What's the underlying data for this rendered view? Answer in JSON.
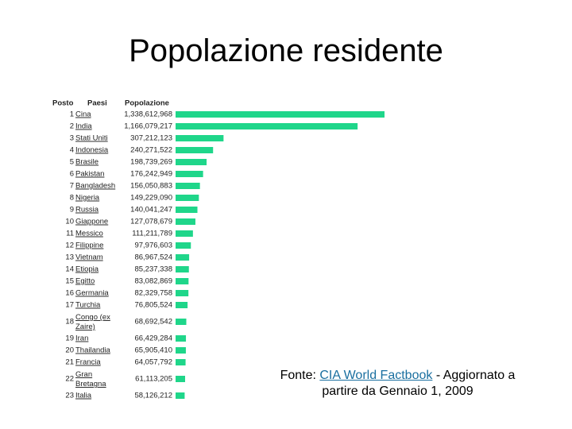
{
  "chart_data": {
    "type": "bar",
    "title": "Popolazione residente",
    "column_headers": [
      "Posto",
      "Paesi",
      "Popolazione"
    ],
    "ranks": [
      1,
      2,
      3,
      4,
      5,
      6,
      7,
      8,
      9,
      10,
      11,
      12,
      13,
      14,
      15,
      16,
      17,
      18,
      19,
      20,
      21,
      22,
      23
    ],
    "categories": [
      "Cina",
      "India",
      "Stati Uniti",
      "Indonesia",
      "Brasile",
      "Pakistan",
      "Bangladesh",
      "Nigeria",
      "Russia",
      "Giappone",
      "Messico",
      "Filippine",
      "Vietnam",
      "Etiopia",
      "Egitto",
      "Germania",
      "Turchia",
      "Congo (ex Zaire)",
      "Iran",
      "Thailandia",
      "Francia",
      "Gran Bretagna",
      "Italia"
    ],
    "values": [
      1338612968,
      1166079217,
      307212123,
      240271522,
      198739269,
      176242949,
      156050883,
      149229090,
      140041247,
      127078679,
      111211789,
      97976603,
      86967524,
      85237338,
      83082869,
      82329758,
      76805524,
      68692542,
      66429284,
      65905410,
      64057792,
      61113205,
      58126212
    ],
    "value_labels": [
      "1,338,612,968",
      "1,166,079,217",
      "307,212,123",
      "240,271,522",
      "198,739,269",
      "176,242,949",
      "156,050,883",
      "149,229,090",
      "140,041,247",
      "127,078,679",
      "111,211,789",
      "97,976,603",
      "86,967,524",
      "85,237,338",
      "83,082,869",
      "82,329,758",
      "76,805,524",
      "68,692,542",
      "66,429,284",
      "65,905,410",
      "64,057,792",
      "61,113,205",
      "58,126,212"
    ],
    "color": "#1fd68a"
  },
  "source": {
    "prefix": "Fonte:",
    "link": "CIA World Factbook",
    "suffix": "- Aggiornato a partire da Gennaio 1, 2009"
  }
}
